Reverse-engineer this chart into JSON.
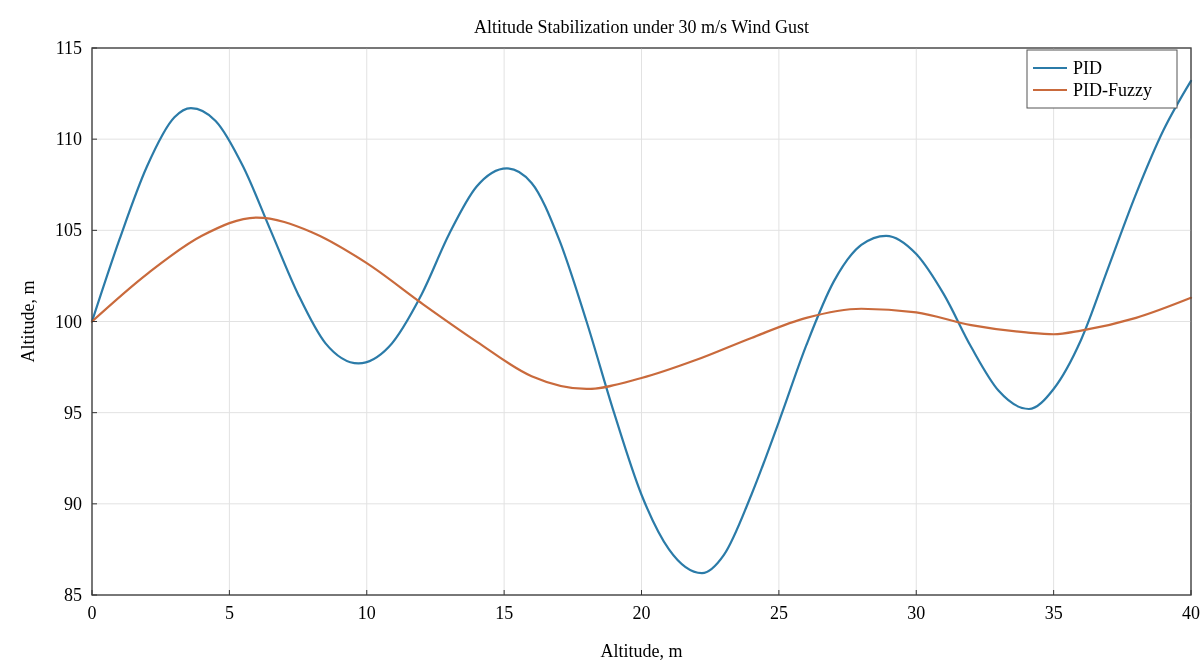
{
  "chart_data": {
    "type": "line",
    "title": "Altitude Stabilization under 30 m/s Wind Gust",
    "xlabel": "Altitude, m",
    "ylabel": "Altitude, m",
    "xlim": [
      0,
      40
    ],
    "xticks": [
      0,
      5,
      10,
      15,
      20,
      25,
      30,
      35,
      40
    ],
    "ylim": [
      85,
      115
    ],
    "yticks": [
      85,
      90,
      95,
      100,
      105,
      110,
      115
    ],
    "grid": true,
    "legend": "top right",
    "line_style": "solid",
    "series": [
      {
        "name": "PID",
        "color": "#2b7ba8",
        "x": [
          0,
          1,
          2,
          3,
          3.6,
          4.5,
          5.5,
          6.5,
          7.5,
          8.5,
          9.7,
          10.8,
          12,
          13,
          14,
          15.1,
          16,
          17,
          18,
          19,
          20,
          21,
          22.2,
          23,
          24,
          25,
          26,
          27,
          28,
          28.9,
          30,
          31,
          32,
          33,
          34.1,
          35,
          36,
          37,
          38,
          39,
          40
        ],
        "values": [
          100,
          104.5,
          108.5,
          111.2,
          111.7,
          111,
          108.5,
          105,
          101.5,
          98.8,
          97.7,
          98.6,
          101.5,
          104.8,
          107.4,
          108.4,
          107.6,
          104.5,
          100,
          95,
          90.5,
          87.5,
          86.2,
          87.2,
          90.5,
          94.5,
          98.7,
          102.2,
          104.2,
          104.7,
          103.7,
          101.5,
          98.6,
          96.2,
          95.2,
          96.3,
          99,
          103,
          107,
          110.5,
          113.2
        ]
      },
      {
        "name": "PID-Fuzzy",
        "color": "#c96a3c",
        "x": [
          0,
          2,
          4,
          6,
          8,
          10,
          12,
          14,
          16,
          18,
          20,
          22,
          24,
          26,
          28,
          30,
          32,
          34,
          35,
          36,
          38,
          40
        ],
        "values": [
          100,
          102.6,
          104.7,
          105.7,
          104.9,
          103.2,
          101,
          98.9,
          97,
          96.3,
          96.9,
          97.9,
          99.1,
          100.2,
          100.7,
          100.5,
          99.8,
          99.4,
          99.3,
          99.5,
          100.2,
          101.3
        ]
      }
    ]
  }
}
